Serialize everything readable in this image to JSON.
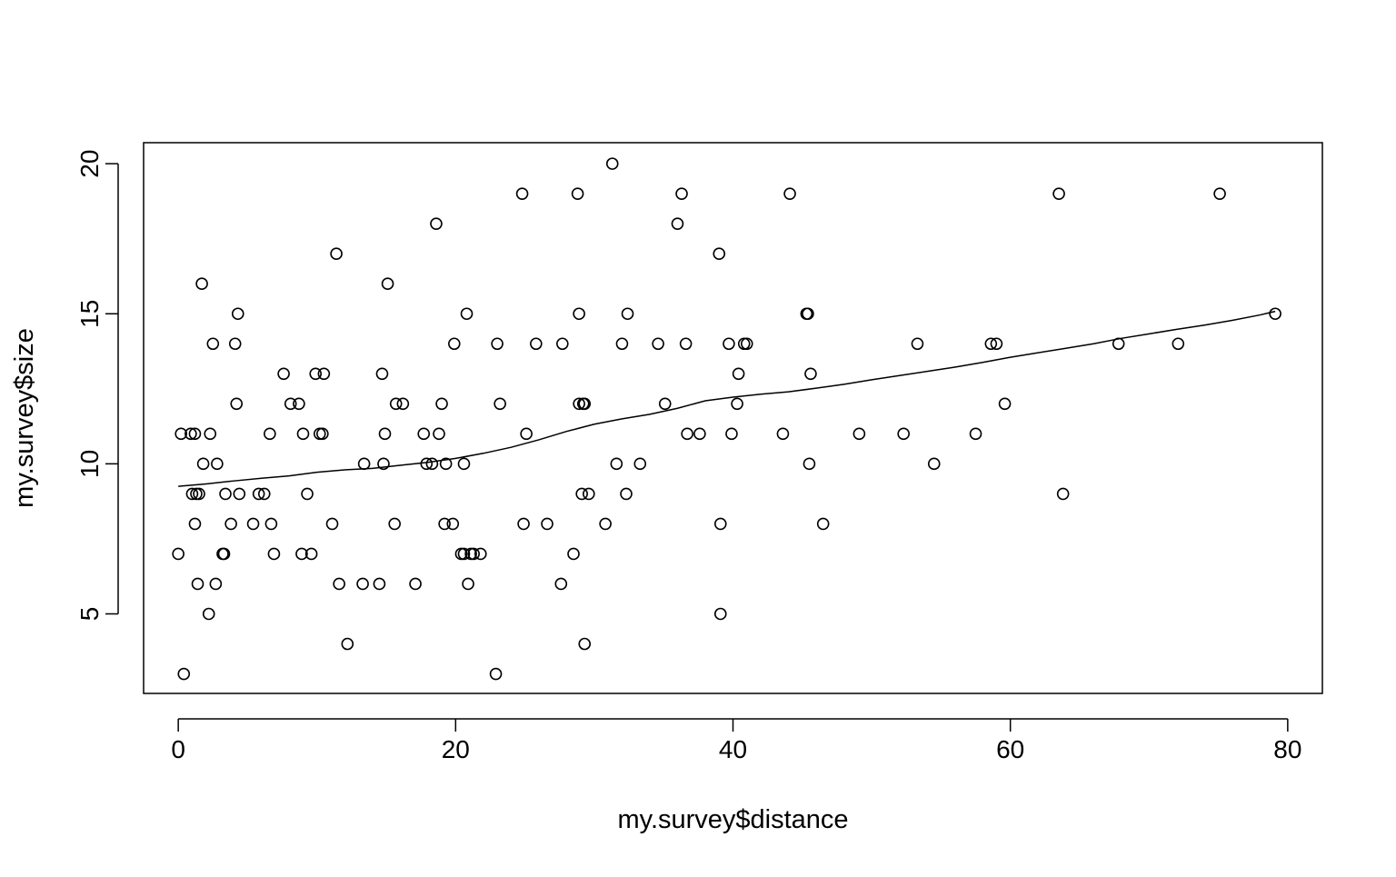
{
  "chart_data": {
    "type": "scatter",
    "title": "",
    "xlabel": "my.survey$distance",
    "ylabel": "my.survey$size",
    "xlim": [
      -2.5,
      82.5
    ],
    "ylim": [
      2.35,
      20.7
    ],
    "xticks": [
      0,
      20,
      40,
      60,
      80
    ],
    "yticks": [
      5,
      10,
      15,
      20
    ],
    "grid": false,
    "legend": "none",
    "colors": {
      "points": "#000000",
      "smooth": "#000000",
      "frame": "#000000",
      "background": "#ffffff"
    },
    "points": [
      [
        0.0,
        7
      ],
      [
        0.2,
        11
      ],
      [
        0.4,
        3
      ],
      [
        0.9,
        11
      ],
      [
        1.0,
        9
      ],
      [
        1.2,
        11
      ],
      [
        1.2,
        8
      ],
      [
        1.3,
        9
      ],
      [
        1.4,
        6
      ],
      [
        1.5,
        9
      ],
      [
        1.7,
        16
      ],
      [
        1.8,
        10
      ],
      [
        2.2,
        5
      ],
      [
        2.3,
        11
      ],
      [
        2.5,
        14
      ],
      [
        2.7,
        6
      ],
      [
        2.8,
        10
      ],
      [
        3.2,
        7
      ],
      [
        3.3,
        7
      ],
      [
        3.4,
        9
      ],
      [
        3.8,
        8
      ],
      [
        4.1,
        14
      ],
      [
        4.2,
        12
      ],
      [
        4.3,
        15
      ],
      [
        4.4,
        9
      ],
      [
        5.4,
        8
      ],
      [
        5.8,
        9
      ],
      [
        6.2,
        9
      ],
      [
        6.6,
        11
      ],
      [
        6.7,
        8
      ],
      [
        6.9,
        7
      ],
      [
        7.6,
        13
      ],
      [
        8.1,
        12
      ],
      [
        8.7,
        12
      ],
      [
        8.9,
        7
      ],
      [
        9.0,
        11
      ],
      [
        9.3,
        9
      ],
      [
        9.6,
        7
      ],
      [
        9.9,
        13
      ],
      [
        10.2,
        11
      ],
      [
        10.4,
        11
      ],
      [
        10.5,
        13
      ],
      [
        11.1,
        8
      ],
      [
        11.4,
        17
      ],
      [
        11.6,
        6
      ],
      [
        12.2,
        4
      ],
      [
        13.3,
        6
      ],
      [
        13.4,
        10
      ],
      [
        14.5,
        6
      ],
      [
        14.7,
        13
      ],
      [
        14.8,
        10
      ],
      [
        14.9,
        11
      ],
      [
        15.1,
        16
      ],
      [
        15.6,
        8
      ],
      [
        15.7,
        12
      ],
      [
        16.2,
        12
      ],
      [
        17.1,
        6
      ],
      [
        17.7,
        11
      ],
      [
        17.9,
        10
      ],
      [
        18.3,
        10
      ],
      [
        18.6,
        18
      ],
      [
        18.8,
        11
      ],
      [
        19.0,
        12
      ],
      [
        19.2,
        8
      ],
      [
        19.3,
        10
      ],
      [
        19.8,
        8
      ],
      [
        19.9,
        14
      ],
      [
        20.4,
        7
      ],
      [
        20.6,
        7
      ],
      [
        20.6,
        10
      ],
      [
        20.8,
        15
      ],
      [
        20.9,
        6
      ],
      [
        21.1,
        7
      ],
      [
        21.3,
        7
      ],
      [
        21.8,
        7
      ],
      [
        22.9,
        3
      ],
      [
        23.0,
        14
      ],
      [
        23.2,
        12
      ],
      [
        24.8,
        19
      ],
      [
        24.9,
        8
      ],
      [
        25.1,
        11
      ],
      [
        25.8,
        14
      ],
      [
        26.6,
        8
      ],
      [
        27.6,
        6
      ],
      [
        27.7,
        14
      ],
      [
        28.5,
        7
      ],
      [
        28.8,
        19
      ],
      [
        28.9,
        12
      ],
      [
        28.9,
        15
      ],
      [
        29.1,
        9
      ],
      [
        29.2,
        12
      ],
      [
        29.3,
        12
      ],
      [
        29.3,
        4
      ],
      [
        29.6,
        9
      ],
      [
        30.8,
        8
      ],
      [
        31.3,
        20
      ],
      [
        31.6,
        10
      ],
      [
        32.0,
        14
      ],
      [
        32.3,
        9
      ],
      [
        32.4,
        15
      ],
      [
        33.3,
        10
      ],
      [
        34.6,
        14
      ],
      [
        35.1,
        12
      ],
      [
        36.0,
        18
      ],
      [
        36.3,
        19
      ],
      [
        36.6,
        14
      ],
      [
        36.7,
        11
      ],
      [
        37.6,
        11
      ],
      [
        39.0,
        17
      ],
      [
        39.1,
        5
      ],
      [
        39.1,
        8
      ],
      [
        39.7,
        14
      ],
      [
        39.9,
        11
      ],
      [
        40.3,
        12
      ],
      [
        40.4,
        13
      ],
      [
        40.8,
        14
      ],
      [
        41.0,
        14
      ],
      [
        43.6,
        11
      ],
      [
        44.1,
        19
      ],
      [
        45.3,
        15
      ],
      [
        45.4,
        15
      ],
      [
        45.5,
        10
      ],
      [
        45.6,
        13
      ],
      [
        46.5,
        8
      ],
      [
        49.1,
        11
      ],
      [
        52.3,
        11
      ],
      [
        53.3,
        14
      ],
      [
        54.5,
        10
      ],
      [
        57.5,
        11
      ],
      [
        58.6,
        14
      ],
      [
        59.0,
        14
      ],
      [
        59.6,
        12
      ],
      [
        63.5,
        19
      ],
      [
        63.8,
        9
      ],
      [
        67.8,
        14
      ],
      [
        72.1,
        14
      ],
      [
        75.1,
        19
      ],
      [
        79.1,
        15
      ]
    ],
    "smooth_line": [
      [
        0.0,
        9.25
      ],
      [
        2.0,
        9.33
      ],
      [
        4.0,
        9.43
      ],
      [
        6.0,
        9.52
      ],
      [
        8.0,
        9.6
      ],
      [
        10.0,
        9.72
      ],
      [
        12.0,
        9.8
      ],
      [
        14.0,
        9.85
      ],
      [
        16.0,
        9.95
      ],
      [
        18.0,
        10.05
      ],
      [
        20.0,
        10.18
      ],
      [
        22.0,
        10.35
      ],
      [
        24.0,
        10.55
      ],
      [
        26.0,
        10.8
      ],
      [
        28.0,
        11.08
      ],
      [
        30.0,
        11.32
      ],
      [
        32.0,
        11.5
      ],
      [
        34.0,
        11.65
      ],
      [
        36.0,
        11.85
      ],
      [
        38.0,
        12.1
      ],
      [
        40.0,
        12.22
      ],
      [
        42.0,
        12.32
      ],
      [
        44.0,
        12.4
      ],
      [
        46.0,
        12.52
      ],
      [
        48.0,
        12.65
      ],
      [
        50.0,
        12.8
      ],
      [
        52.0,
        12.94
      ],
      [
        54.0,
        13.08
      ],
      [
        56.0,
        13.22
      ],
      [
        58.0,
        13.38
      ],
      [
        60.0,
        13.55
      ],
      [
        62.0,
        13.7
      ],
      [
        64.0,
        13.85
      ],
      [
        66.0,
        14.0
      ],
      [
        68.0,
        14.18
      ],
      [
        70.0,
        14.33
      ],
      [
        72.0,
        14.48
      ],
      [
        74.0,
        14.62
      ],
      [
        76.0,
        14.78
      ],
      [
        78.0,
        14.96
      ],
      [
        79.1,
        15.08
      ]
    ]
  }
}
